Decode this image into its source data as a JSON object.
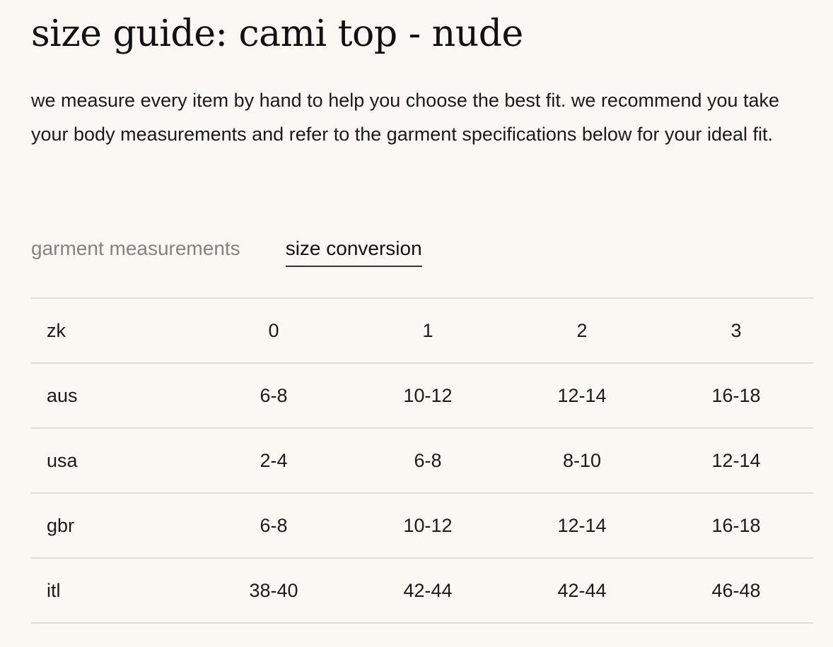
{
  "title": "size guide: cami top - nude",
  "description": "we measure every item by hand to help you choose the best fit. we recommend you take your body measurements and refer to the garment specifications below for your ideal fit.",
  "tabs": [
    {
      "label": "garment measurements",
      "active": false
    },
    {
      "label": "size conversion",
      "active": true
    }
  ],
  "table": {
    "rows": [
      {
        "label": "zk",
        "values": [
          "0",
          "1",
          "2",
          "3"
        ]
      },
      {
        "label": "aus",
        "values": [
          "6-8",
          "10-12",
          "12-14",
          "16-18"
        ]
      },
      {
        "label": "usa",
        "values": [
          "2-4",
          "6-8",
          "8-10",
          "12-14"
        ]
      },
      {
        "label": "gbr",
        "values": [
          "6-8",
          "10-12",
          "12-14",
          "16-18"
        ]
      },
      {
        "label": "itl",
        "values": [
          "38-40",
          "42-44",
          "42-44",
          "46-48"
        ]
      }
    ]
  },
  "colors": {
    "background": "#fbf8f3",
    "divider": "#e4dccb",
    "inactive_tab": "#848280"
  }
}
